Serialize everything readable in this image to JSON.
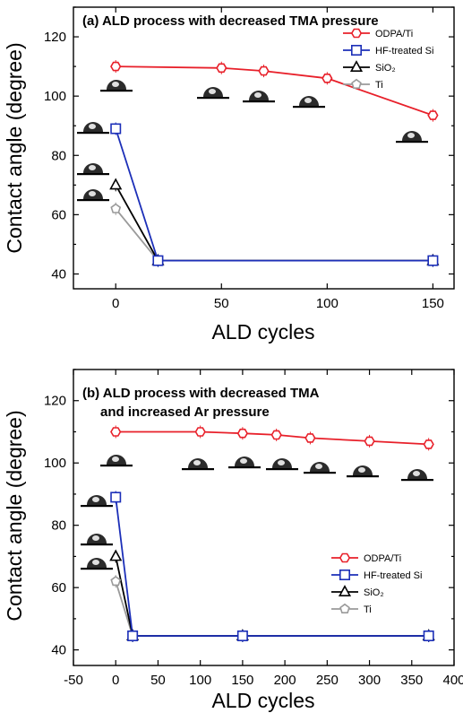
{
  "colors": {
    "ODPA/Ti": "#e8202a",
    "HF-treated Si": "#1c2fb8",
    "SiO2": "#000000",
    "Ti": "#9a9a9a",
    "droplet": "#2b2b2b"
  },
  "chart_data": [
    {
      "type": "line",
      "title": "(a) ALD process with decreased TMA pressure",
      "title_lines": [
        "(a) ALD process with decreased TMA pressure"
      ],
      "xlabel": "ALD cycles",
      "ylabel": "Contact angle (degree)",
      "xlim": [
        -20,
        160
      ],
      "ylim": [
        35,
        130
      ],
      "xticks": [
        0,
        50,
        100,
        150
      ],
      "yticks": [
        40,
        60,
        80,
        100,
        120
      ],
      "legend_position": "top-right",
      "series": [
        {
          "name": "ODPA/Ti",
          "marker": "hexagon",
          "x": [
            0,
            50,
            70,
            100,
            150
          ],
          "y": [
            110,
            109.5,
            108.5,
            106,
            93.5
          ]
        },
        {
          "name": "HF-treated Si",
          "marker": "square",
          "x": [
            0,
            20,
            150
          ],
          "y": [
            89,
            44.5,
            44.5
          ]
        },
        {
          "name": "SiO₂",
          "marker": "triangle",
          "x": [
            0,
            20,
            150
          ],
          "y": [
            70,
            44.5,
            44.5
          ]
        },
        {
          "name": "Ti",
          "marker": "pentagon",
          "x": [
            0,
            20,
            150
          ],
          "y": [
            62,
            44.5,
            44.5
          ]
        }
      ]
    },
    {
      "type": "line",
      "title": "(b) ALD process with decreased TMA and increased Ar pressure",
      "title_lines": [
        "(b) ALD process with decreased TMA",
        "and increased Ar pressure"
      ],
      "xlabel": "ALD cycles",
      "ylabel": "Contact angle (degree)",
      "xlim": [
        -50,
        400
      ],
      "ylim": [
        35,
        130
      ],
      "xticks": [
        -50,
        0,
        50,
        100,
        150,
        200,
        250,
        300,
        350,
        400
      ],
      "yticks": [
        40,
        60,
        80,
        100,
        120
      ],
      "legend_position": "lower-right",
      "series": [
        {
          "name": "ODPA/Ti",
          "marker": "hexagon",
          "x": [
            0,
            100,
            150,
            190,
            230,
            300,
            370
          ],
          "y": [
            110,
            110,
            109.5,
            109,
            108,
            107,
            106
          ]
        },
        {
          "name": "HF-treated Si",
          "marker": "square",
          "x": [
            0,
            20,
            150,
            370
          ],
          "y": [
            89,
            44.5,
            44.5,
            44.5
          ]
        },
        {
          "name": "SiO₂",
          "marker": "triangle",
          "x": [
            0,
            20,
            150,
            370
          ],
          "y": [
            70,
            44.5,
            44.5,
            44.5
          ]
        },
        {
          "name": "Ti",
          "marker": "pentagon",
          "x": [
            0,
            20,
            150,
            370
          ],
          "y": [
            62,
            44.5,
            44.5,
            44.5
          ]
        }
      ]
    }
  ]
}
